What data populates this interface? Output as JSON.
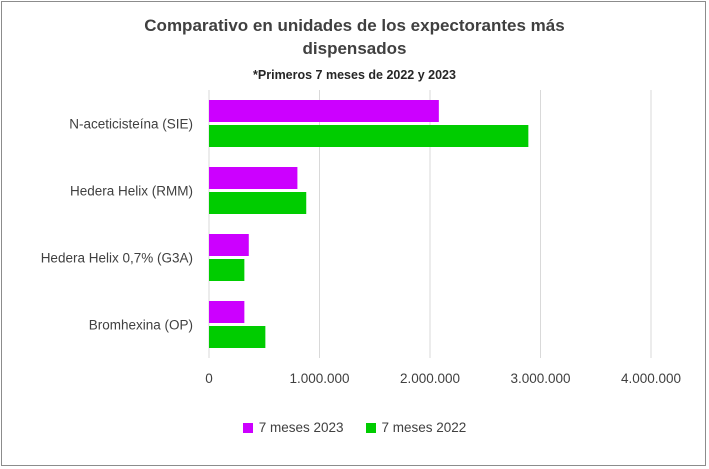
{
  "chart_data": {
    "type": "bar",
    "orientation": "horizontal",
    "title_lines": [
      "Comparativo en unidades de los expectorantes más",
      "dispensados"
    ],
    "subtitle": "*Primeros 7 meses de 2022 y 2023",
    "categories": [
      "N-aceticisteína (SIE)",
      "Hedera Helix (RMM)",
      "Hedera Helix 0,7% (G3A)",
      "Bromhexina (OP)"
    ],
    "series": [
      {
        "name": "7 meses 2023",
        "color": "#cc00ff",
        "values": [
          2080000,
          800000,
          360000,
          320000
        ]
      },
      {
        "name": "7 meses 2022",
        "color": "#00cc00",
        "values": [
          2890000,
          880000,
          320000,
          510000
        ]
      }
    ],
    "xlim": [
      0,
      4000000
    ],
    "x_ticks": [
      0,
      1000000,
      2000000,
      3000000,
      4000000
    ],
    "x_tick_labels": [
      "0",
      "1.000.000",
      "2.000.000",
      "3.000.000",
      "4.000.000"
    ],
    "gridlines": true,
    "legend_position": "bottom"
  }
}
